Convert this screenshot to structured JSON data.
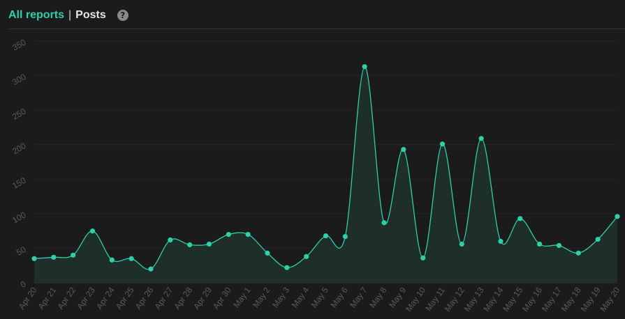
{
  "header": {
    "link_label": "All reports",
    "separator": "|",
    "current_label": "Posts",
    "help_glyph": "?"
  },
  "colors": {
    "accent": "#2ecfa9",
    "background": "#1b1b1b",
    "area_fill": "#1e2e29",
    "grid": "#262626"
  },
  "chart_data": {
    "type": "line",
    "title": "",
    "xlabel": "",
    "ylabel": "",
    "ylim": [
      0,
      350
    ],
    "yticks": [
      0,
      50,
      100,
      150,
      200,
      250,
      300,
      350
    ],
    "grid": true,
    "smooth": true,
    "area": true,
    "categories": [
      "Apr 20",
      "Apr 21",
      "Apr 22",
      "Apr 23",
      "Apr 24",
      "Apr 25",
      "Apr 26",
      "Apr 27",
      "Apr 28",
      "Apr 29",
      "Apr 30",
      "May 1",
      "May 2",
      "May 3",
      "May 4",
      "May 5",
      "May 6",
      "May 7",
      "May 8",
      "May 9",
      "May 10",
      "May 11",
      "May 12",
      "May 13",
      "May 14",
      "May 15",
      "May 16",
      "May 17",
      "May 18",
      "May 19",
      "May 20"
    ],
    "series": [
      {
        "values": [
          35,
          37,
          40,
          75,
          33,
          35,
          20,
          62,
          55,
          56,
          70,
          70,
          43,
          22,
          38,
          68,
          67,
          313,
          87,
          193,
          36,
          201,
          56,
          209,
          60,
          93,
          56,
          54,
          43,
          63,
          96
        ]
      }
    ]
  }
}
